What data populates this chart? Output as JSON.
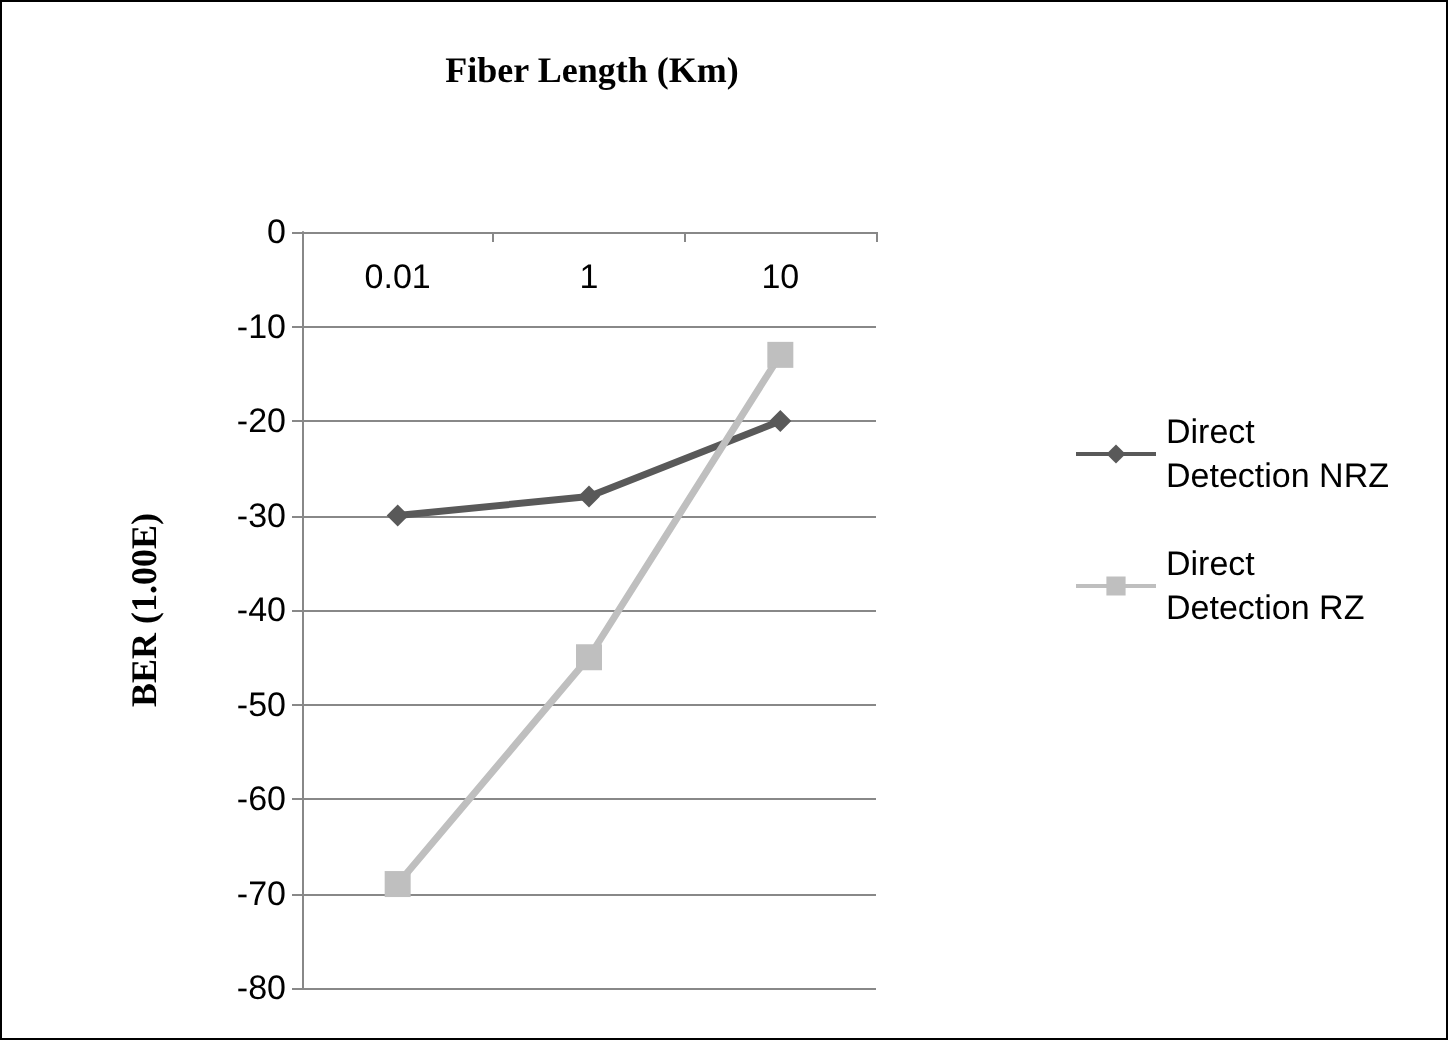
{
  "chart_data": {
    "type": "line",
    "title": "Fiber Length (Km)",
    "ylabel": "BER (1.00E)",
    "categories": [
      "0.01",
      "1",
      "10"
    ],
    "series": [
      {
        "name": "Direct Detection NRZ",
        "color": "#595959",
        "marker": "diamond",
        "values": [
          -30,
          -28,
          -20
        ]
      },
      {
        "name": "Direct Detection RZ",
        "color": "#bfbfbf",
        "marker": "square",
        "values": [
          -69,
          -45,
          -13
        ]
      }
    ],
    "ylim": [
      -80,
      0
    ],
    "yticks": [
      0,
      -10,
      -20,
      -30,
      -40,
      -50,
      -60,
      -70,
      -80
    ],
    "grid": "y",
    "legend": "right",
    "line_style": "solid"
  }
}
